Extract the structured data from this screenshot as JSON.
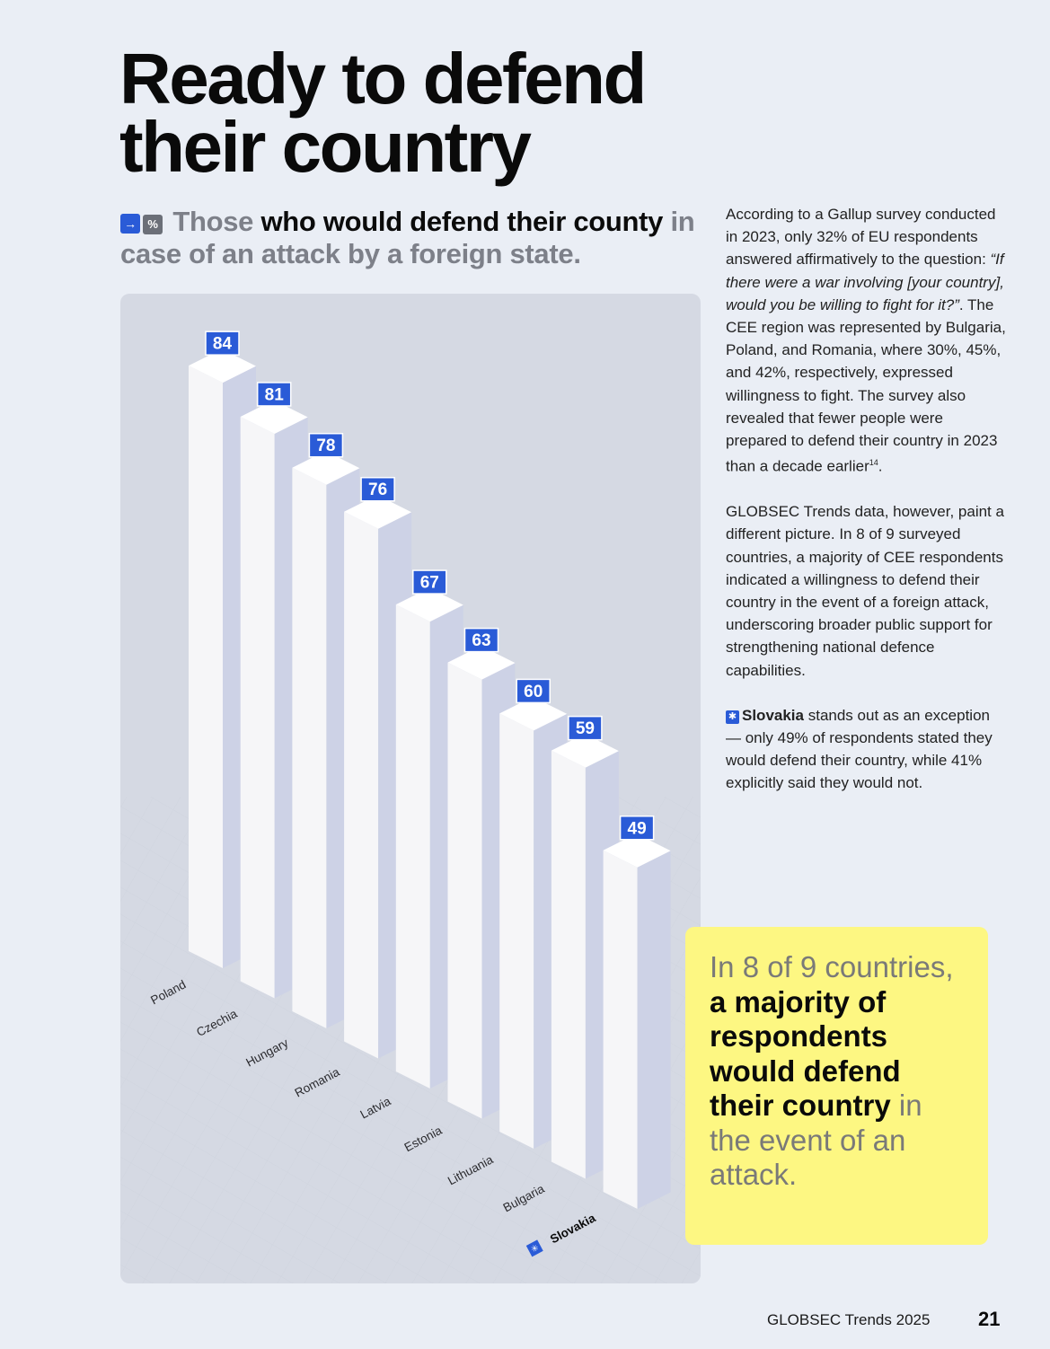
{
  "page": {
    "title": "Ready to defend their country",
    "subtitle_light": "Those",
    "subtitle_dark": "who would defend their county",
    "subtitle_rest": "in case of an attack by a foreign state.",
    "icons": [
      "arrow-right-icon",
      "percent-icon",
      "slovakia-marker-icon"
    ],
    "footer": "GLOBSEC Trends 2025",
    "page_number": "21"
  },
  "body": {
    "p1_a": "According to a Gallup survey conducted in 2023, only 32% of EU respondents answered affirmatively to the question: ",
    "p1_quote": "“If there were a war involving [your country], would you be willing to fight for it?”",
    "p1_b": ". The CEE region was represented by Bulgaria, Poland, and Romania, where 30%, 45%, and 42%, respectively, expressed willingness to fight. The survey also revealed that fewer people were prepared to defend their country in 2023 than a decade earlier",
    "p1_footnote": "14",
    "p1_end": ".",
    "p2": "GLOBSEC Trends data, however, paint a different picture. In 8 of 9 surveyed countries, a majority of CEE respondents indicated a willingness to defend their country in the event of a foreign attack, underscoring broader public support for strengthening national defence capabilities.",
    "p3_bold": "Slovakia",
    "p3_rest": " stands out as an exception — only 49% of respondents stated they would defend their country, while 41% explicitly said they would not."
  },
  "callout": {
    "light_1": "In 8 of 9 countries,",
    "bold": "a majority of respondents would defend their country",
    "light_2": " in the event of an attack."
  },
  "chart_data": {
    "type": "bar",
    "unit": "%",
    "categories": [
      "Poland",
      "Czechia",
      "Hungary",
      "Romania",
      "Latvia",
      "Estonia",
      "Lithuania",
      "Bulgaria",
      "Slovakia"
    ],
    "values": [
      84,
      81,
      78,
      76,
      67,
      63,
      60,
      59,
      49
    ],
    "highlight": "Slovakia",
    "colors": {
      "bar_front": "#f6f6f8",
      "bar_side": "#cdd2e6",
      "bar_top": "#ffffff",
      "label_bg": "#2a5bd7",
      "label_text": "#ffffff",
      "panel_bg": "#d5d9e3"
    }
  }
}
